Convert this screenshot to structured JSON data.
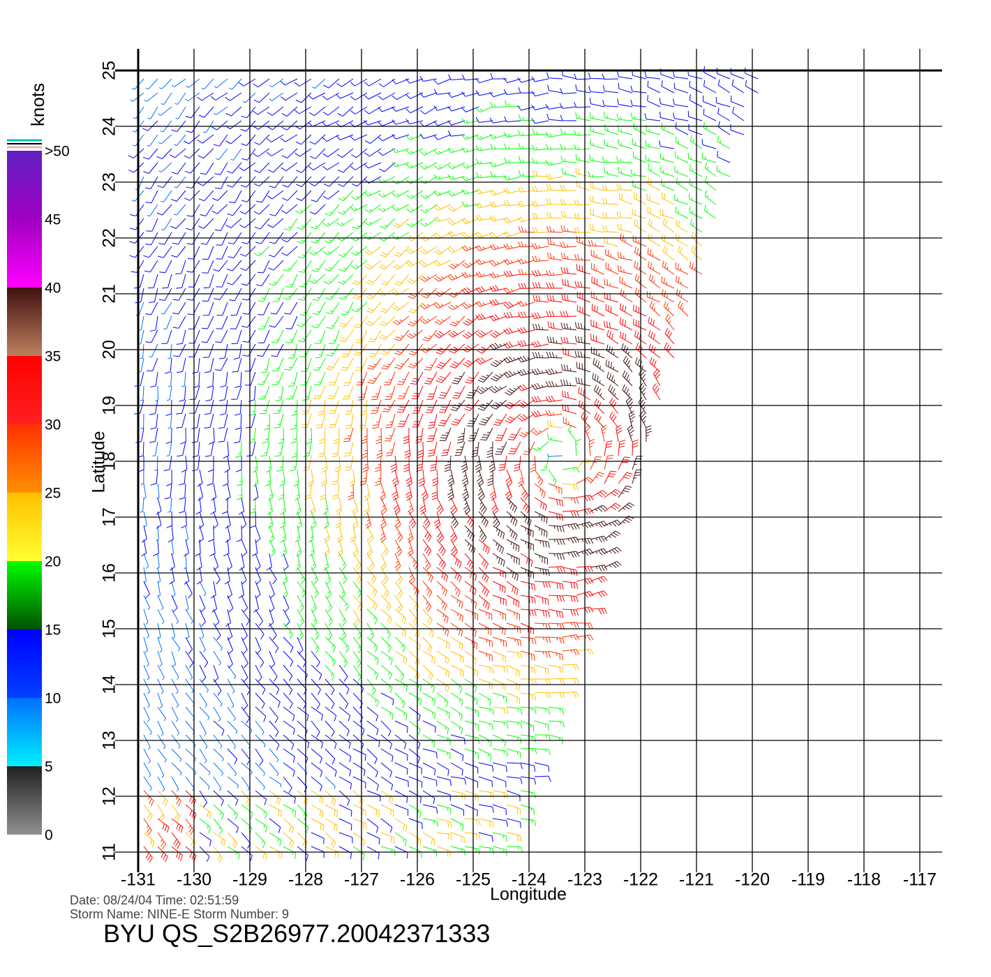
{
  "chart_data": {
    "type": "wind-barbs",
    "xlabel": "Longitude",
    "ylabel": "Latitude",
    "xlim": [
      -131,
      -117
    ],
    "ylim": [
      11,
      25
    ],
    "xticks": [
      -131,
      -130,
      -129,
      -128,
      -127,
      -126,
      -125,
      -124,
      -123,
      -122,
      -121,
      -120,
      -119,
      -118,
      -117
    ],
    "yticks": [
      11,
      12,
      13,
      14,
      15,
      16,
      17,
      18,
      19,
      20,
      21,
      22,
      23,
      24,
      25
    ],
    "grid": true,
    "colorbar": {
      "label": "knots",
      "lim": [
        0,
        50
      ],
      "ticks": [
        0,
        5,
        10,
        15,
        20,
        25,
        30,
        35,
        40,
        45,
        {
          "value": 50,
          "label": ">50"
        }
      ],
      "colors": [
        [
          "#909090",
          "#202020"
        ],
        [
          "#00f0ff",
          "#0070ff"
        ],
        [
          "#0040ff",
          "#0000ff"
        ],
        [
          "#005000",
          "#00ff00"
        ],
        [
          "#ffff30",
          "#ffc000"
        ],
        [
          "#ff9000",
          "#ff3000"
        ],
        [
          "#ff2020",
          "#ff0000"
        ],
        [
          "#c08060",
          "#401010"
        ],
        [
          "#ff00ff",
          "#a000c0"
        ],
        [
          "#a000c0",
          "#6020c0"
        ]
      ]
    },
    "info": [
      "Date: 08/24/04   Time: 02:51:59",
      "Storm Name: NINE-E   Storm Number: 9"
    ],
    "title": "BYU QS_S2B26977.20042371333"
  }
}
